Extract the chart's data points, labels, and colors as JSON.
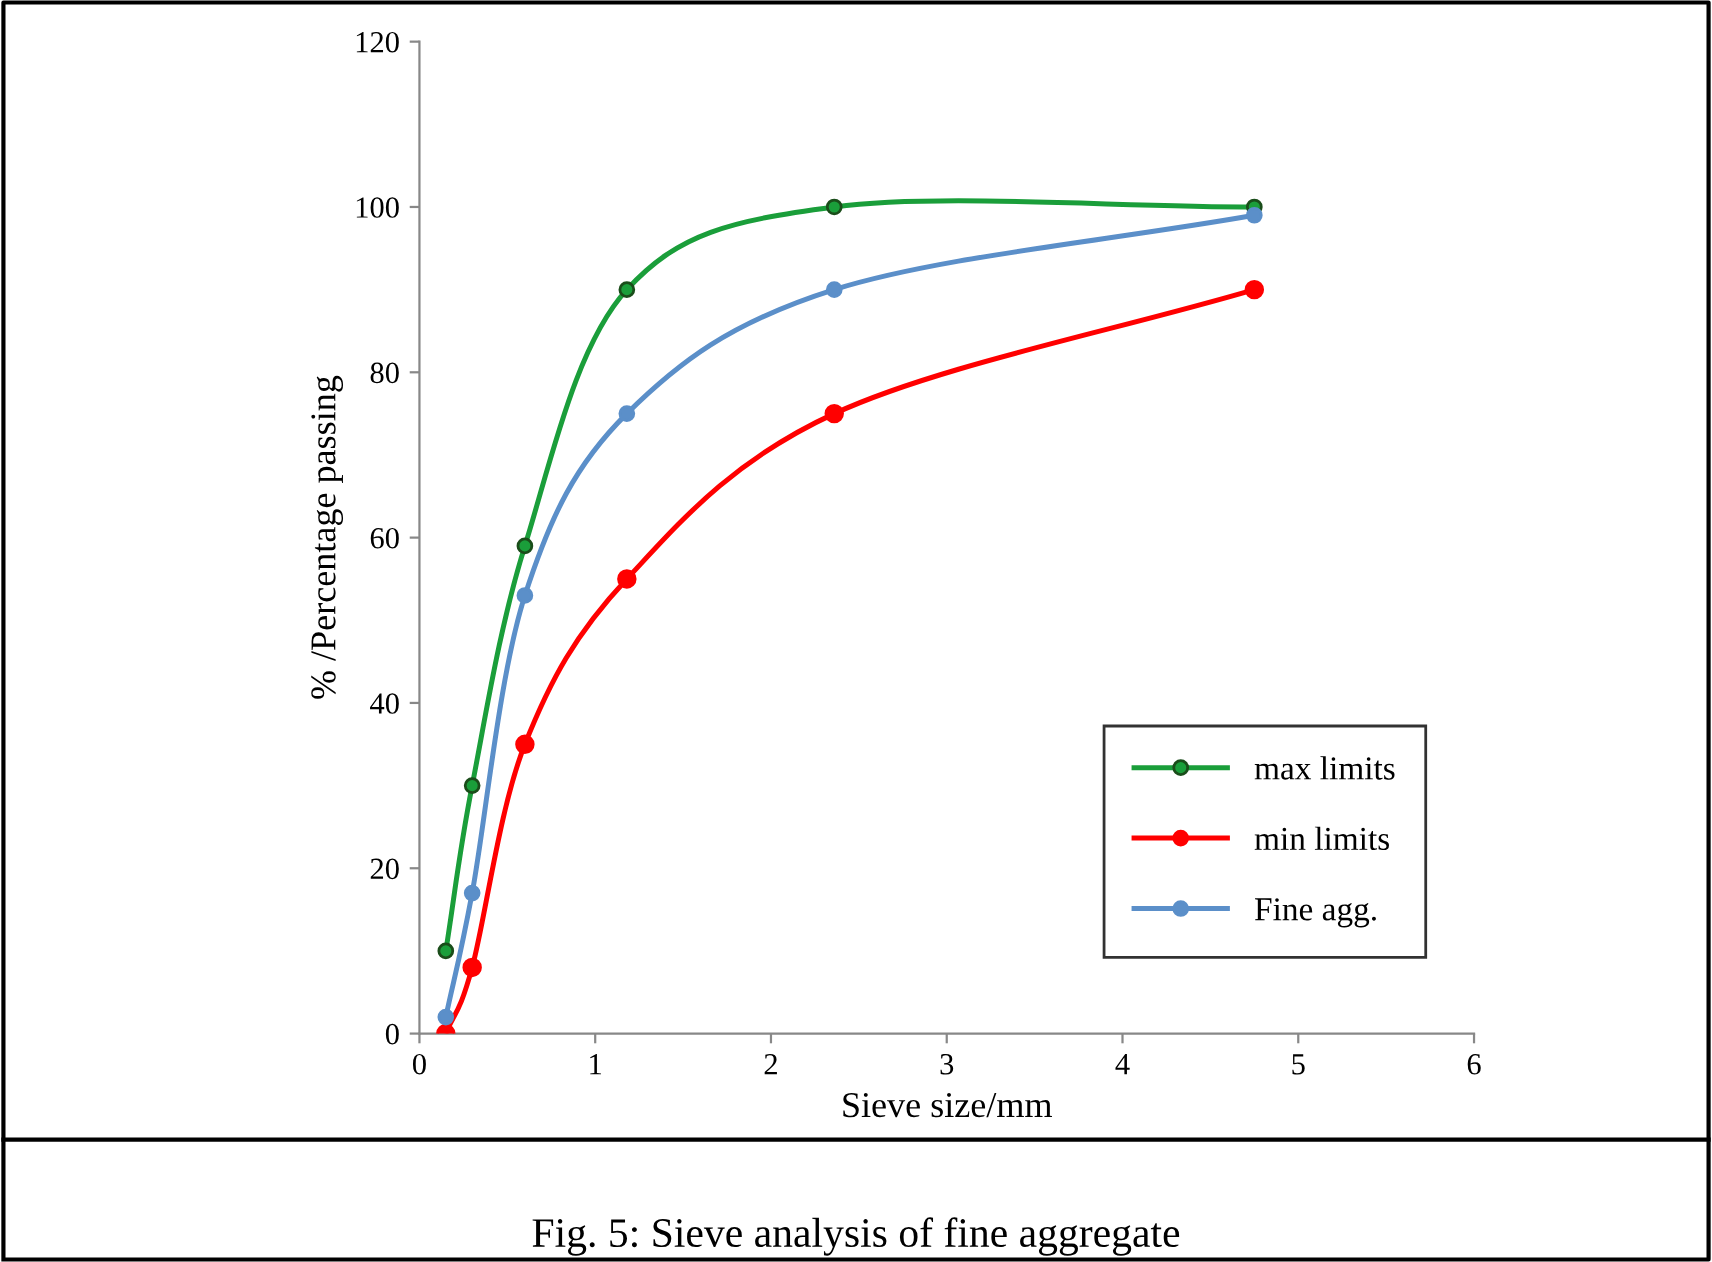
{
  "chart_data": {
    "type": "line",
    "xlabel": "Sieve size/mm",
    "ylabel": "% /Percentage passing",
    "x": [
      0.15,
      0.3,
      0.6,
      1.18,
      2.36,
      4.75
    ],
    "series": [
      {
        "name": "max limits",
        "color": "#1a9e3a",
        "values": [
          10,
          30,
          59,
          90,
          100,
          100
        ]
      },
      {
        "name": "min limits",
        "color": "#ff0000",
        "values": [
          0,
          8,
          35,
          55,
          75,
          90
        ]
      },
      {
        "name": "Fine agg.",
        "color": "#5b8fc9",
        "values": [
          2,
          17,
          53,
          75,
          90,
          99
        ]
      }
    ],
    "xlim": [
      0,
      6
    ],
    "xticks": [
      0,
      1,
      2,
      3,
      4,
      5,
      6
    ],
    "ylim": [
      0,
      120
    ],
    "yticks": [
      0,
      20,
      40,
      60,
      80,
      100,
      120
    ],
    "grid": false,
    "legend": "bottom right",
    "marker": "circle",
    "line_style": "solid",
    "annotations": [
      "Fig. 5: Sieve analysis of fine aggregate"
    ]
  }
}
